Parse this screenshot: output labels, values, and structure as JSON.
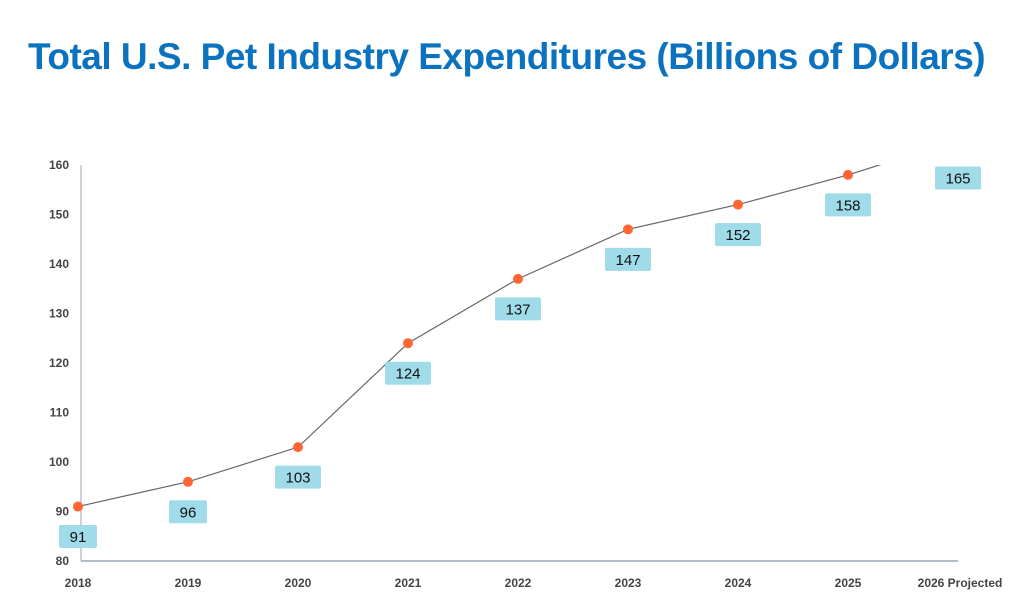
{
  "chart_data": {
    "type": "line",
    "title": "Total U.S. Pet Industry Expenditures (Billions of Dollars)",
    "categories": [
      "2018",
      "2019",
      "2020",
      "2021",
      "2022",
      "2023",
      "2024",
      "2025",
      "2026 Projected"
    ],
    "values": [
      91,
      96,
      103,
      124,
      137,
      147,
      152,
      158,
      165
    ],
    "data_labels": [
      "91",
      "96",
      "103",
      "124",
      "137",
      "147",
      "152",
      "158",
      "165"
    ],
    "ylim": [
      80,
      160
    ],
    "yticks": [
      80,
      90,
      100,
      110,
      120,
      130,
      140,
      150,
      160
    ],
    "xlabel": "",
    "ylabel": "",
    "grid": false,
    "legend": "none",
    "colors": {
      "title": "#0a72bf",
      "line": "#666666",
      "marker": "#ff6633",
      "label_bg": "#9fdbe8",
      "axis": "#9aaab4"
    }
  }
}
